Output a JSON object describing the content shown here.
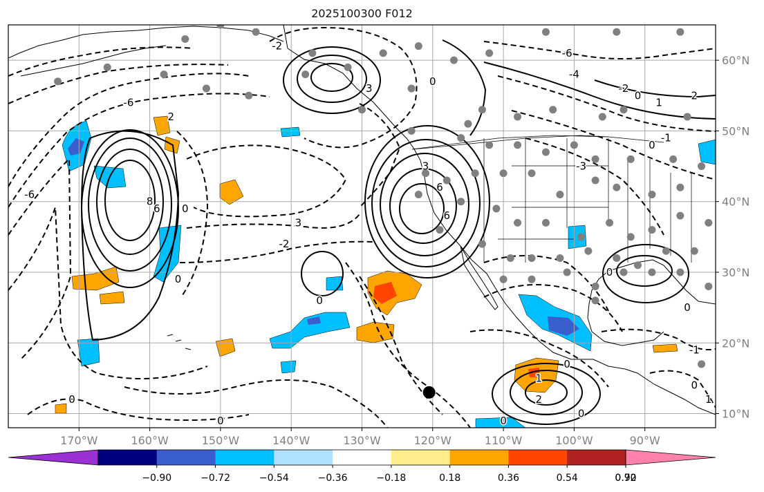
{
  "title": "2025100300 F012",
  "map": {
    "lon_range": [
      -180,
      -80
    ],
    "lat_range": [
      8,
      65
    ],
    "lat_labels": [
      "60°N",
      "50°N",
      "40°N",
      "30°N",
      "20°N",
      "10°N"
    ],
    "lat_values": [
      60,
      50,
      40,
      30,
      20,
      10
    ],
    "lon_labels": [
      "170°W",
      "160°W",
      "150°W",
      "140°W",
      "130°W",
      "120°W",
      "110°W",
      "100°W",
      "90°W"
    ],
    "lon_values": [
      -170,
      -160,
      -150,
      -140,
      -130,
      -120,
      -110,
      -100,
      -90
    ],
    "contour_labels": [
      {
        "text": "-6",
        "lon": -177,
        "lat": 41
      },
      {
        "text": "-6",
        "lon": -163,
        "lat": 54
      },
      {
        "text": "2",
        "lon": -157,
        "lat": 52
      },
      {
        "text": "6",
        "lon": -159,
        "lat": 39
      },
      {
        "text": "8",
        "lon": -160,
        "lat": 40
      },
      {
        "text": "0",
        "lon": -155,
        "lat": 39
      },
      {
        "text": "0",
        "lon": -156,
        "lat": 29
      },
      {
        "text": "3",
        "lon": -139,
        "lat": 37
      },
      {
        "text": "-2",
        "lon": -141,
        "lat": 34
      },
      {
        "text": "0",
        "lon": -136,
        "lat": 26
      },
      {
        "text": "0",
        "lon": -171,
        "lat": 12
      },
      {
        "text": "0",
        "lon": -150,
        "lat": 9
      },
      {
        "text": "-2",
        "lon": -142,
        "lat": 62
      },
      {
        "text": "3",
        "lon": -129,
        "lat": 56
      },
      {
        "text": "0",
        "lon": -120,
        "lat": 57
      },
      {
        "text": "3",
        "lon": -121,
        "lat": 45
      },
      {
        "text": "6",
        "lon": -119,
        "lat": 42
      },
      {
        "text": "6",
        "lon": -118,
        "lat": 38
      },
      {
        "text": "-6",
        "lon": -101,
        "lat": 61
      },
      {
        "text": "-4",
        "lon": -100,
        "lat": 58
      },
      {
        "text": "-2",
        "lon": -93,
        "lat": 56
      },
      {
        "text": "0",
        "lon": -91,
        "lat": 55
      },
      {
        "text": "1",
        "lon": -88,
        "lat": 54
      },
      {
        "text": "0",
        "lon": -89,
        "lat": 48
      },
      {
        "text": "-1",
        "lon": -87,
        "lat": 49
      },
      {
        "text": "2",
        "lon": -83,
        "lat": 55
      },
      {
        "text": "-3",
        "lon": -99,
        "lat": 45
      },
      {
        "text": "0",
        "lon": -95,
        "lat": 30
      },
      {
        "text": "0",
        "lon": -84,
        "lat": 25
      },
      {
        "text": "-1",
        "lon": -83,
        "lat": 19
      },
      {
        "text": "0",
        "lon": -101,
        "lat": 17
      },
      {
        "text": "2",
        "lon": -105,
        "lat": 12
      },
      {
        "text": "0",
        "lon": -99,
        "lat": 10
      },
      {
        "text": "0",
        "lon": -110,
        "lat": 9
      },
      {
        "text": "0",
        "lon": -83,
        "lat": 14
      },
      {
        "text": "1",
        "lon": -81,
        "lat": 12
      },
      {
        "text": "1",
        "lon": -105,
        "lat": 15
      }
    ],
    "stations": [
      [
        -155,
        63
      ],
      [
        -150,
        65
      ],
      [
        -145,
        64
      ],
      [
        -137,
        61
      ],
      [
        -132,
        59
      ],
      [
        -127,
        61
      ],
      [
        -122,
        62
      ],
      [
        -117,
        60
      ],
      [
        -112,
        61
      ],
      [
        -104,
        64
      ],
      [
        -94,
        64
      ],
      [
        -85,
        64
      ],
      [
        -173,
        57
      ],
      [
        -166,
        59
      ],
      [
        -158,
        58
      ],
      [
        -152,
        56
      ],
      [
        -146,
        55
      ],
      [
        -138,
        58
      ],
      [
        -130,
        53
      ],
      [
        -123,
        56
      ],
      [
        -113,
        53
      ],
      [
        -108,
        52
      ],
      [
        -103,
        53
      ],
      [
        -96,
        52
      ],
      [
        -93,
        53
      ],
      [
        -84,
        52
      ],
      [
        -123,
        50
      ],
      [
        -116,
        49
      ],
      [
        -115,
        51
      ],
      [
        -112,
        48
      ],
      [
        -108,
        48
      ],
      [
        -104,
        47
      ],
      [
        -100,
        48
      ],
      [
        -97,
        46
      ],
      [
        -92,
        46
      ],
      [
        -86,
        46
      ],
      [
        -82,
        45
      ],
      [
        -121,
        44
      ],
      [
        -118,
        43
      ],
      [
        -114,
        44
      ],
      [
        -110,
        44
      ],
      [
        -106,
        44
      ],
      [
        -102,
        41
      ],
      [
        -97,
        43
      ],
      [
        -94,
        42
      ],
      [
        -89,
        41
      ],
      [
        -85,
        42
      ],
      [
        -122,
        41
      ],
      [
        -116,
        40
      ],
      [
        -111,
        39
      ],
      [
        -108,
        37
      ],
      [
        -104,
        37
      ],
      [
        -99,
        35
      ],
      [
        -95,
        37
      ],
      [
        -92,
        35
      ],
      [
        -89,
        36
      ],
      [
        -85,
        38
      ],
      [
        -81,
        37
      ],
      [
        -119,
        36
      ],
      [
        -113,
        34
      ],
      [
        -109,
        32
      ],
      [
        -106,
        32
      ],
      [
        -102,
        32
      ],
      [
        -98,
        33
      ],
      [
        -94,
        32
      ],
      [
        -91,
        31
      ],
      [
        -87,
        33
      ],
      [
        -83,
        33
      ],
      [
        -110,
        29
      ],
      [
        -106,
        29
      ],
      [
        -101,
        30
      ],
      [
        -97,
        28
      ],
      [
        -93,
        30
      ],
      [
        -89,
        30
      ],
      [
        -85,
        30
      ],
      [
        -81,
        28
      ],
      [
        -97,
        26
      ],
      [
        -82,
        17
      ]
    ],
    "special_marker": {
      "lon": -120.5,
      "lat": 13
    }
  },
  "colorbar": {
    "tick_labels": [
      "−0.90",
      "−0.72",
      "−0.54",
      "−0.36",
      "−0.18",
      "0.18",
      "0.36",
      "0.54",
      "0.72",
      "0.90"
    ],
    "bounds": [
      -0.9,
      -0.72,
      -0.54,
      -0.36,
      -0.18,
      0.18,
      0.36,
      0.54,
      0.72,
      0.9
    ],
    "colors": [
      "#9b30d3",
      "#000080",
      "#3a5fcd",
      "#00bfff",
      "#b0e2ff",
      "#ffffff",
      "#ffec8b",
      "#ffa500",
      "#ff4500",
      "#b22222",
      "#ff82ab"
    ]
  }
}
